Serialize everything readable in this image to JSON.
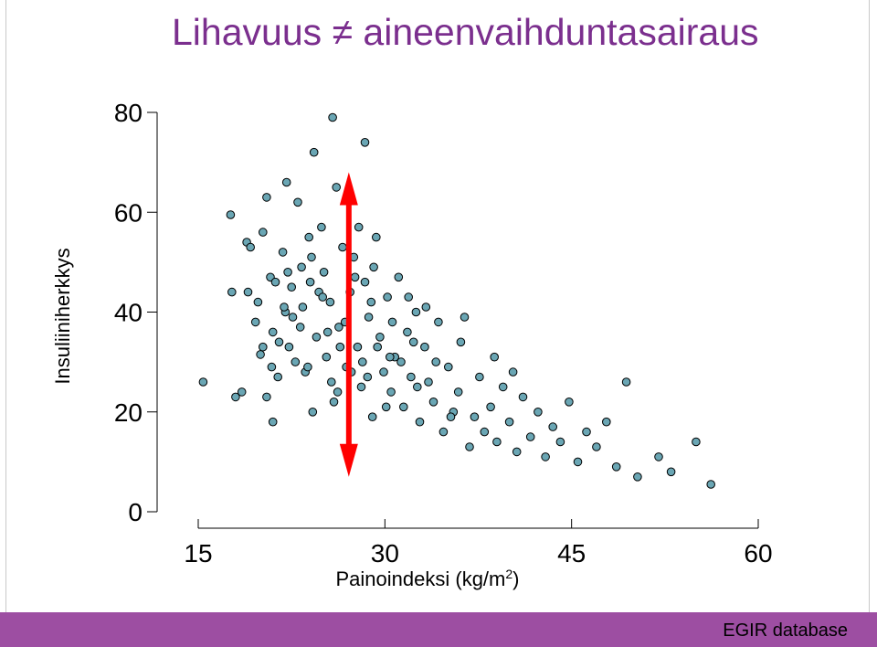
{
  "slide": {
    "title": "Lihavuus ≠ aineenvaihduntasairaus",
    "footer": "EGIR database",
    "accent_color": "#9d4ea2",
    "title_color": "#7b2f8e",
    "point_color": "#6aa6b4",
    "arrow_color": "#ff0000"
  },
  "chart_data": {
    "type": "scatter",
    "title": "",
    "xlabel": "Painoindeksi (kg/m",
    "xlabel_sup": "2",
    "xlabel_tail": ")",
    "ylabel": "Insuliiniherkkys",
    "xlim": [
      15,
      60
    ],
    "ylim": [
      0,
      80
    ],
    "xticks": [
      15,
      30,
      45,
      60
    ],
    "yticks": [
      0,
      20,
      40,
      60,
      80
    ],
    "grid": false,
    "annotation": {
      "type": "double-arrow",
      "x": 27.1,
      "y_from": 7,
      "y_to": 68
    },
    "series": [
      {
        "points": [
          [
            15.4,
            26
          ],
          [
            17.6,
            59.5
          ],
          [
            17.7,
            44
          ],
          [
            18,
            23
          ],
          [
            18.9,
            54
          ],
          [
            18.5,
            24
          ],
          [
            19,
            44
          ],
          [
            19.2,
            53
          ],
          [
            19.6,
            38
          ],
          [
            20,
            31.5
          ],
          [
            20.2,
            56
          ],
          [
            20.5,
            63
          ],
          [
            20.2,
            33
          ],
          [
            20.8,
            47
          ],
          [
            21,
            36
          ],
          [
            21.2,
            46
          ],
          [
            21.4,
            27
          ],
          [
            21,
            18
          ],
          [
            20.5,
            23
          ],
          [
            21.8,
            52
          ],
          [
            22.1,
            66
          ],
          [
            22,
            40
          ],
          [
            22.3,
            33
          ],
          [
            22.5,
            45
          ],
          [
            22.8,
            30
          ],
          [
            23,
            62
          ],
          [
            23.2,
            37
          ],
          [
            23.4,
            41
          ],
          [
            23.6,
            28
          ],
          [
            23.9,
            55
          ],
          [
            24,
            46
          ],
          [
            24.2,
            20
          ],
          [
            24.5,
            35
          ],
          [
            24.9,
            57
          ],
          [
            25.1,
            48
          ],
          [
            25.3,
            31
          ],
          [
            25.6,
            42
          ],
          [
            25.9,
            22
          ],
          [
            26.1,
            65
          ],
          [
            26.3,
            37
          ],
          [
            26.6,
            53
          ],
          [
            26.9,
            29
          ],
          [
            27.2,
            44
          ],
          [
            27.5,
            51
          ],
          [
            27.8,
            33
          ],
          [
            28.1,
            25
          ],
          [
            28.4,
            46
          ],
          [
            28.7,
            39
          ],
          [
            29,
            19
          ],
          [
            29.3,
            55
          ],
          [
            29.6,
            35
          ],
          [
            29.9,
            28
          ],
          [
            30.2,
            43
          ],
          [
            30.5,
            24
          ],
          [
            30.8,
            31
          ],
          [
            31.1,
            47
          ],
          [
            31.5,
            21
          ],
          [
            31.8,
            36
          ],
          [
            32.1,
            27
          ],
          [
            32.5,
            40
          ],
          [
            32.8,
            18
          ],
          [
            33.2,
            33
          ],
          [
            33.5,
            26
          ],
          [
            33.9,
            22
          ],
          [
            34.3,
            38
          ],
          [
            34.7,
            16
          ],
          [
            35.1,
            29
          ],
          [
            35.5,
            20
          ],
          [
            35.9,
            24
          ],
          [
            36.4,
            39
          ],
          [
            36.8,
            13
          ],
          [
            37.2,
            19
          ],
          [
            37.6,
            27
          ],
          [
            38,
            16
          ],
          [
            38.5,
            21
          ],
          [
            39,
            14
          ],
          [
            39.5,
            25
          ],
          [
            40,
            18
          ],
          [
            40.6,
            12
          ],
          [
            41.1,
            23
          ],
          [
            41.7,
            15
          ],
          [
            42.3,
            20
          ],
          [
            42.9,
            11
          ],
          [
            43.5,
            17
          ],
          [
            44.1,
            14
          ],
          [
            44.8,
            22
          ],
          [
            45.5,
            10
          ],
          [
            46.2,
            16
          ],
          [
            47,
            13
          ],
          [
            47.8,
            18
          ],
          [
            48.6,
            9
          ],
          [
            49.4,
            26
          ],
          [
            50.3,
            7
          ],
          [
            52,
            11
          ],
          [
            53,
            8
          ],
          [
            55,
            14
          ],
          [
            56.2,
            5.5
          ],
          [
            21.5,
            34
          ],
          [
            22.6,
            39
          ],
          [
            24.7,
            44
          ],
          [
            26.8,
            38
          ],
          [
            28.2,
            30
          ],
          [
            29.4,
            33
          ],
          [
            30.6,
            38
          ],
          [
            31.3,
            30
          ],
          [
            32.3,
            34
          ],
          [
            34.1,
            30
          ],
          [
            23.8,
            29
          ],
          [
            25.7,
            26
          ],
          [
            27.6,
            47
          ],
          [
            28.9,
            42
          ],
          [
            30.1,
            21
          ],
          [
            19.8,
            42
          ],
          [
            20.9,
            29
          ],
          [
            22.2,
            48
          ],
          [
            24.1,
            51
          ],
          [
            25.4,
            36
          ],
          [
            26.2,
            24
          ],
          [
            27.9,
            57
          ],
          [
            29.1,
            49
          ],
          [
            31.9,
            43
          ],
          [
            33.3,
            41
          ],
          [
            36.1,
            34
          ],
          [
            38.8,
            31
          ],
          [
            24.3,
            72
          ],
          [
            25.8,
            79
          ],
          [
            28.4,
            74
          ],
          [
            21.9,
            41
          ],
          [
            23.3,
            49
          ],
          [
            25,
            43
          ],
          [
            26.4,
            33
          ],
          [
            27.3,
            28
          ],
          [
            28.6,
            27
          ],
          [
            30.4,
            31
          ],
          [
            32.6,
            25
          ],
          [
            35.3,
            19
          ],
          [
            40.3,
            28
          ]
        ]
      }
    ]
  }
}
